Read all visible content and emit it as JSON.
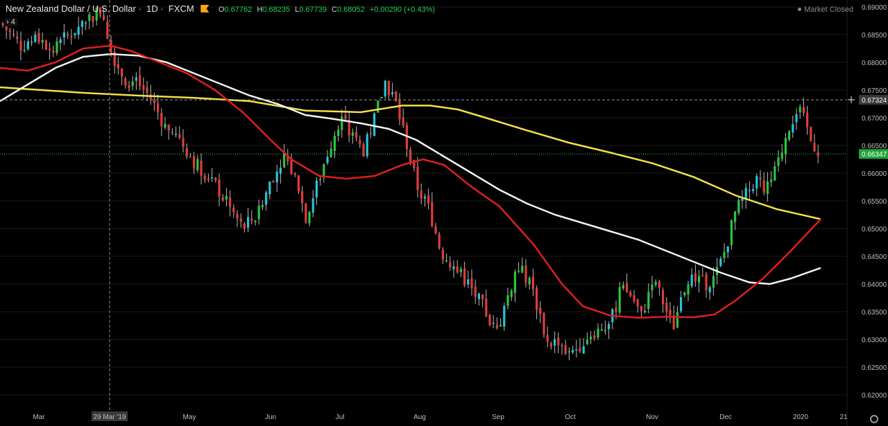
{
  "header": {
    "symbol": "New Zealand Dollar / U.S. Dollar",
    "interval": "1D",
    "source": "FXCM",
    "ohlc": {
      "o_label": "O",
      "o": "0.67762",
      "h_label": "H",
      "h": "0.68235",
      "l_label": "L",
      "l": "0.67739",
      "c_label": "C",
      "c": "0.68052",
      "change": "+0.00290 (+0.43%)"
    },
    "collapse_label": "4",
    "market_status": "Market Closed"
  },
  "colors": {
    "up": "#25c4d8",
    "down": "#e33b3b",
    "up_alt": "#29c63d",
    "ma_fast": "#e01e1e",
    "ma_mid": "#f2f2f2",
    "ma_slow": "#f4e04a",
    "grid": "#1a1a1a",
    "axis_text": "#bfbfbf"
  },
  "chart_data": {
    "type": "candlestick",
    "y_axis_ticks": [
      "0.69000",
      "0.68500",
      "0.68000",
      "0.67500",
      "0.67000",
      "0.66500",
      "0.66000",
      "0.65500",
      "0.65000",
      "0.64500",
      "0.64000",
      "0.63500",
      "0.63000",
      "0.62500",
      "0.62000"
    ],
    "x_axis_labels": [
      "Mar",
      "29 Mar '19",
      "May",
      "Jun",
      "Jul",
      "Aug",
      "Sep",
      "Oct",
      "Nov",
      "Dec",
      "2020",
      "21"
    ],
    "ylim": [
      0.6185,
      0.691
    ],
    "price_labels": {
      "hline": "0.67324",
      "last": "0.66347"
    },
    "ma_fast": [
      [
        0,
        0.679
      ],
      [
        40,
        0.6785
      ],
      [
        80,
        0.68
      ],
      [
        120,
        0.6825
      ],
      [
        160,
        0.683
      ],
      [
        190,
        0.682
      ],
      [
        230,
        0.68
      ],
      [
        270,
        0.678
      ],
      [
        310,
        0.675
      ],
      [
        350,
        0.671
      ],
      [
        390,
        0.666
      ],
      [
        420,
        0.6625
      ],
      [
        460,
        0.6595
      ],
      [
        500,
        0.659
      ],
      [
        540,
        0.6595
      ],
      [
        580,
        0.6615
      ],
      [
        610,
        0.6625
      ],
      [
        640,
        0.6615
      ],
      [
        680,
        0.6575
      ],
      [
        720,
        0.654
      ],
      [
        770,
        0.647
      ],
      [
        810,
        0.64
      ],
      [
        840,
        0.636
      ],
      [
        880,
        0.6343
      ],
      [
        920,
        0.6339
      ],
      [
        960,
        0.6341
      ],
      [
        1000,
        0.634
      ],
      [
        1030,
        0.6345
      ],
      [
        1060,
        0.637
      ],
      [
        1100,
        0.641
      ],
      [
        1140,
        0.646
      ],
      [
        1183,
        0.6517
      ]
    ],
    "ma_mid": [
      [
        0,
        0.673
      ],
      [
        40,
        0.676
      ],
      [
        80,
        0.679
      ],
      [
        120,
        0.681
      ],
      [
        160,
        0.6815
      ],
      [
        200,
        0.6812
      ],
      [
        240,
        0.68
      ],
      [
        280,
        0.678
      ],
      [
        320,
        0.676
      ],
      [
        360,
        0.674
      ],
      [
        400,
        0.6725
      ],
      [
        440,
        0.6705
      ],
      [
        480,
        0.6698
      ],
      [
        520,
        0.669
      ],
      [
        560,
        0.668
      ],
      [
        600,
        0.666
      ],
      [
        640,
        0.663
      ],
      [
        680,
        0.66
      ],
      [
        720,
        0.657
      ],
      [
        760,
        0.6545
      ],
      [
        800,
        0.6525
      ],
      [
        840,
        0.651
      ],
      [
        880,
        0.6495
      ],
      [
        920,
        0.648
      ],
      [
        960,
        0.646
      ],
      [
        1000,
        0.644
      ],
      [
        1040,
        0.642
      ],
      [
        1080,
        0.6403
      ],
      [
        1110,
        0.64
      ],
      [
        1140,
        0.641
      ],
      [
        1183,
        0.6429
      ]
    ],
    "ma_slow": [
      [
        0,
        0.6755
      ],
      [
        60,
        0.675
      ],
      [
        120,
        0.6745
      ],
      [
        200,
        0.674
      ],
      [
        280,
        0.6736
      ],
      [
        360,
        0.673
      ],
      [
        440,
        0.6713
      ],
      [
        520,
        0.671
      ],
      [
        580,
        0.6722
      ],
      [
        620,
        0.6722
      ],
      [
        660,
        0.6715
      ],
      [
        700,
        0.67
      ],
      [
        760,
        0.6677
      ],
      [
        820,
        0.6655
      ],
      [
        880,
        0.6637
      ],
      [
        940,
        0.6618
      ],
      [
        1000,
        0.6593
      ],
      [
        1060,
        0.656
      ],
      [
        1120,
        0.6535
      ],
      [
        1183,
        0.6517
      ]
    ],
    "candles_anchor": [
      [
        2,
        0.687
      ],
      [
        30,
        0.683
      ],
      [
        55,
        0.6845
      ],
      [
        75,
        0.682
      ],
      [
        100,
        0.685
      ],
      [
        125,
        0.688
      ],
      [
        148,
        0.6895
      ],
      [
        160,
        0.682
      ],
      [
        180,
        0.677
      ],
      [
        200,
        0.676
      ],
      [
        215,
        0.674
      ],
      [
        240,
        0.668
      ],
      [
        260,
        0.666
      ],
      [
        280,
        0.662
      ],
      [
        305,
        0.659
      ],
      [
        330,
        0.654
      ],
      [
        350,
        0.65
      ],
      [
        375,
        0.653
      ],
      [
        390,
        0.659
      ],
      [
        410,
        0.663
      ],
      [
        430,
        0.658
      ],
      [
        440,
        0.652
      ],
      [
        455,
        0.657
      ],
      [
        470,
        0.663
      ],
      [
        490,
        0.67
      ],
      [
        510,
        0.666
      ],
      [
        525,
        0.664
      ],
      [
        540,
        0.67
      ],
      [
        555,
        0.6765
      ],
      [
        570,
        0.673
      ],
      [
        585,
        0.666
      ],
      [
        600,
        0.658
      ],
      [
        620,
        0.653
      ],
      [
        635,
        0.646
      ],
      [
        655,
        0.643
      ],
      [
        675,
        0.64
      ],
      [
        700,
        0.635
      ],
      [
        715,
        0.631
      ],
      [
        730,
        0.637
      ],
      [
        745,
        0.643
      ],
      [
        760,
        0.641
      ],
      [
        775,
        0.636
      ],
      [
        790,
        0.629
      ],
      [
        805,
        0.63
      ],
      [
        820,
        0.627
      ],
      [
        835,
        0.629
      ],
      [
        850,
        0.631
      ],
      [
        865,
        0.632
      ],
      [
        880,
        0.633
      ],
      [
        895,
        0.639
      ],
      [
        910,
        0.638
      ],
      [
        925,
        0.634
      ],
      [
        940,
        0.641
      ],
      [
        955,
        0.637
      ],
      [
        970,
        0.632
      ],
      [
        985,
        0.639
      ],
      [
        1000,
        0.641
      ],
      [
        1015,
        0.64
      ],
      [
        1030,
        0.641
      ],
      [
        1045,
        0.646
      ],
      [
        1060,
        0.653
      ],
      [
        1075,
        0.656
      ],
      [
        1090,
        0.659
      ],
      [
        1105,
        0.657
      ],
      [
        1120,
        0.661
      ],
      [
        1135,
        0.668
      ],
      [
        1150,
        0.672
      ],
      [
        1160,
        0.669
      ],
      [
        1170,
        0.6655
      ],
      [
        1183,
        0.6635
      ]
    ]
  }
}
